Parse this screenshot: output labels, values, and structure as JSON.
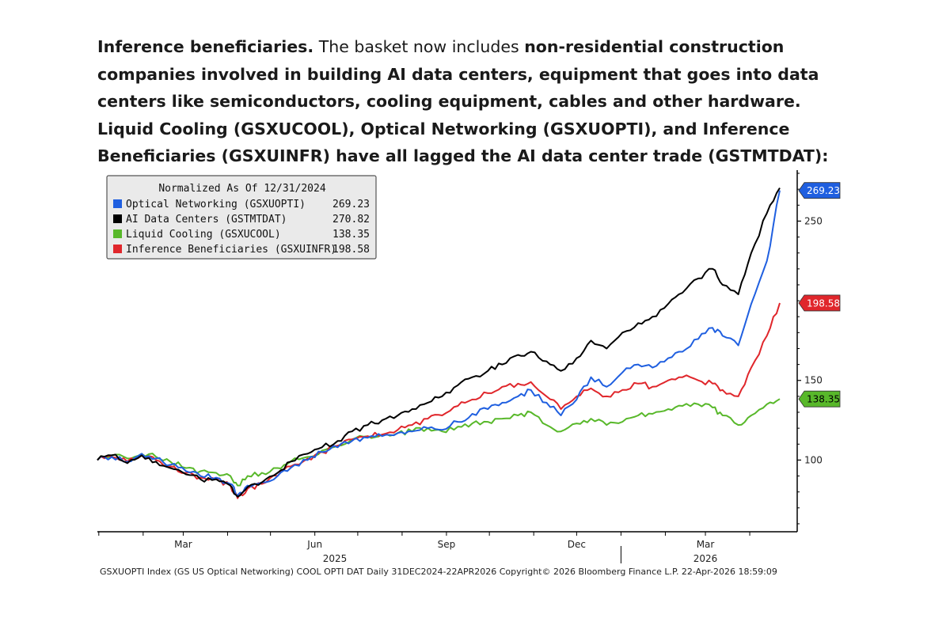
{
  "paragraph": {
    "lead": "Inference beneficiaries.",
    "text_a": " The basket now includes ",
    "bold_b": "non-residential construction companies involved in building AI data centers, equipment that goes into data centers like semiconductors, cooling equipment, cables and other hardware. Liquid Cooling (GSXUCOOL), Optical Networking (GSXUOPTI), and Inference Beneficiaries (GSXUINFR) have all lagged the AI data center trade (GSTMTDAT):"
  },
  "footer": "GSXUOPTI Index (GS US Optical Networking) COOL OPTI DAT Daily 31DEC2024-22APR2026  Copyright© 2026 Bloomberg Finance L.P.  22-Apr-2026 18:59:09",
  "chart_data": {
    "type": "line",
    "legend_title": "Normalized As Of 12/31/2024",
    "legend_position": "top-left",
    "x_tick_labels": [
      "Mar",
      "Jun",
      "Sep",
      "Dec",
      "Mar"
    ],
    "x_year_labels": [
      "2025",
      "2026"
    ],
    "y_ticks": [
      100,
      150,
      250
    ],
    "ylim": [
      55,
      282
    ],
    "x_range": [
      "2024-12-31",
      "2026-04-22"
    ],
    "grid": false,
    "series": [
      {
        "name": "Optical Networking (GSXUOPTI)",
        "last": "269.23",
        "color": "#1f5fe0",
        "x": [
          "2024-12-31",
          "2025-01-10",
          "2025-01-21",
          "2025-01-31",
          "2025-02-10",
          "2025-02-20",
          "2025-03-03",
          "2025-03-13",
          "2025-03-24",
          "2025-04-03",
          "2025-04-08",
          "2025-04-15",
          "2025-04-25",
          "2025-05-06",
          "2025-05-15",
          "2025-05-27",
          "2025-06-06",
          "2025-06-17",
          "2025-06-27",
          "2025-07-08",
          "2025-07-18",
          "2025-07-29",
          "2025-08-08",
          "2025-08-19",
          "2025-08-29",
          "2025-09-09",
          "2025-09-19",
          "2025-09-30",
          "2025-10-10",
          "2025-10-21",
          "2025-10-30",
          "2025-11-10",
          "2025-11-20",
          "2025-12-01",
          "2025-12-11",
          "2025-12-22",
          "2026-01-02",
          "2026-01-13",
          "2026-01-23",
          "2026-02-03",
          "2026-02-13",
          "2026-02-24",
          "2026-03-06",
          "2026-03-13",
          "2026-03-24",
          "2026-04-02",
          "2026-04-13",
          "2026-04-22"
        ],
        "y": [
          100,
          102,
          99,
          104,
          101,
          97,
          93,
          90,
          89,
          85,
          78,
          84,
          86,
          90,
          95,
          100,
          105,
          108,
          112,
          114,
          115,
          117,
          118,
          120,
          119,
          124,
          129,
          132,
          136,
          140,
          144,
          136,
          128,
          138,
          152,
          146,
          155,
          160,
          158,
          164,
          168,
          176,
          183,
          178,
          172,
          198,
          225,
          269.23
        ]
      },
      {
        "name": "AI Data Centers (GSTMTDAT)",
        "last": "270.82",
        "color": "#000000",
        "x": [
          "2024-12-31",
          "2025-01-10",
          "2025-01-21",
          "2025-01-31",
          "2025-02-10",
          "2025-02-20",
          "2025-03-03",
          "2025-03-13",
          "2025-03-24",
          "2025-04-03",
          "2025-04-08",
          "2025-04-15",
          "2025-04-25",
          "2025-05-06",
          "2025-05-15",
          "2025-05-27",
          "2025-06-06",
          "2025-06-17",
          "2025-06-27",
          "2025-07-08",
          "2025-07-18",
          "2025-07-29",
          "2025-08-08",
          "2025-08-19",
          "2025-08-29",
          "2025-09-09",
          "2025-09-19",
          "2025-09-30",
          "2025-10-10",
          "2025-10-21",
          "2025-10-30",
          "2025-11-10",
          "2025-11-20",
          "2025-12-01",
          "2025-12-11",
          "2025-12-22",
          "2026-01-02",
          "2026-01-13",
          "2026-01-23",
          "2026-02-03",
          "2026-02-13",
          "2026-02-24",
          "2026-03-06",
          "2026-03-13",
          "2026-03-24",
          "2026-04-02",
          "2026-04-13",
          "2026-04-22"
        ],
        "y": [
          100,
          103,
          98,
          103,
          99,
          95,
          91,
          88,
          88,
          84,
          77,
          83,
          86,
          92,
          99,
          104,
          108,
          112,
          118,
          122,
          125,
          128,
          132,
          136,
          140,
          147,
          152,
          156,
          160,
          166,
          168,
          162,
          156,
          164,
          175,
          170,
          180,
          186,
          190,
          198,
          205,
          214,
          220,
          210,
          204,
          230,
          255,
          270.82
        ]
      },
      {
        "name": "Liquid Cooling (GSXUCOOL)",
        "last": "138.35",
        "color": "#58b82a",
        "x": [
          "2024-12-31",
          "2025-01-10",
          "2025-01-21",
          "2025-01-31",
          "2025-02-10",
          "2025-02-20",
          "2025-03-03",
          "2025-03-13",
          "2025-03-24",
          "2025-04-03",
          "2025-04-08",
          "2025-04-15",
          "2025-04-25",
          "2025-05-06",
          "2025-05-15",
          "2025-05-27",
          "2025-06-06",
          "2025-06-17",
          "2025-06-27",
          "2025-07-08",
          "2025-07-18",
          "2025-07-29",
          "2025-08-08",
          "2025-08-19",
          "2025-08-29",
          "2025-09-09",
          "2025-09-19",
          "2025-09-30",
          "2025-10-10",
          "2025-10-21",
          "2025-10-30",
          "2025-11-10",
          "2025-11-20",
          "2025-12-01",
          "2025-12-11",
          "2025-12-22",
          "2026-01-02",
          "2026-01-13",
          "2026-01-23",
          "2026-02-03",
          "2026-02-13",
          "2026-02-24",
          "2026-03-06",
          "2026-03-13",
          "2026-03-24",
          "2026-04-02",
          "2026-04-13",
          "2026-04-22"
        ],
        "y": [
          100,
          103,
          101,
          104,
          102,
          99,
          95,
          93,
          92,
          90,
          84,
          90,
          92,
          95,
          99,
          102,
          106,
          109,
          113,
          115,
          116,
          117,
          118,
          120,
          118,
          121,
          123,
          124,
          126,
          128,
          130,
          122,
          118,
          123,
          126,
          122,
          124,
          128,
          129,
          132,
          134,
          135,
          133,
          128,
          122,
          128,
          135,
          138.35
        ]
      },
      {
        "name": "Inference Beneficiaries (GSXUINFR)",
        "last": "198.58",
        "color": "#e0262b",
        "x": [
          "2024-12-31",
          "2025-01-10",
          "2025-01-21",
          "2025-01-31",
          "2025-02-10",
          "2025-02-20",
          "2025-03-03",
          "2025-03-13",
          "2025-03-24",
          "2025-04-03",
          "2025-04-08",
          "2025-04-15",
          "2025-04-25",
          "2025-05-06",
          "2025-05-15",
          "2025-05-27",
          "2025-06-06",
          "2025-06-17",
          "2025-06-27",
          "2025-07-08",
          "2025-07-18",
          "2025-07-29",
          "2025-08-08",
          "2025-08-19",
          "2025-08-29",
          "2025-09-09",
          "2025-09-19",
          "2025-09-30",
          "2025-10-10",
          "2025-10-21",
          "2025-10-30",
          "2025-11-10",
          "2025-11-20",
          "2025-12-01",
          "2025-12-11",
          "2025-12-22",
          "2026-01-02",
          "2026-01-13",
          "2026-01-23",
          "2026-02-03",
          "2026-02-13",
          "2026-02-24",
          "2026-03-06",
          "2026-03-13",
          "2026-03-24",
          "2026-04-02",
          "2026-04-13",
          "2026-04-22"
        ],
        "y": [
          100,
          102,
          99,
          103,
          100,
          96,
          92,
          89,
          88,
          84,
          76,
          82,
          85,
          90,
          96,
          101,
          105,
          109,
          113,
          115,
          116,
          119,
          122,
          126,
          128,
          134,
          138,
          142,
          146,
          148,
          149,
          140,
          132,
          140,
          145,
          140,
          144,
          148,
          146,
          150,
          152,
          150,
          148,
          144,
          140,
          158,
          178,
          198.58
        ]
      }
    ]
  }
}
